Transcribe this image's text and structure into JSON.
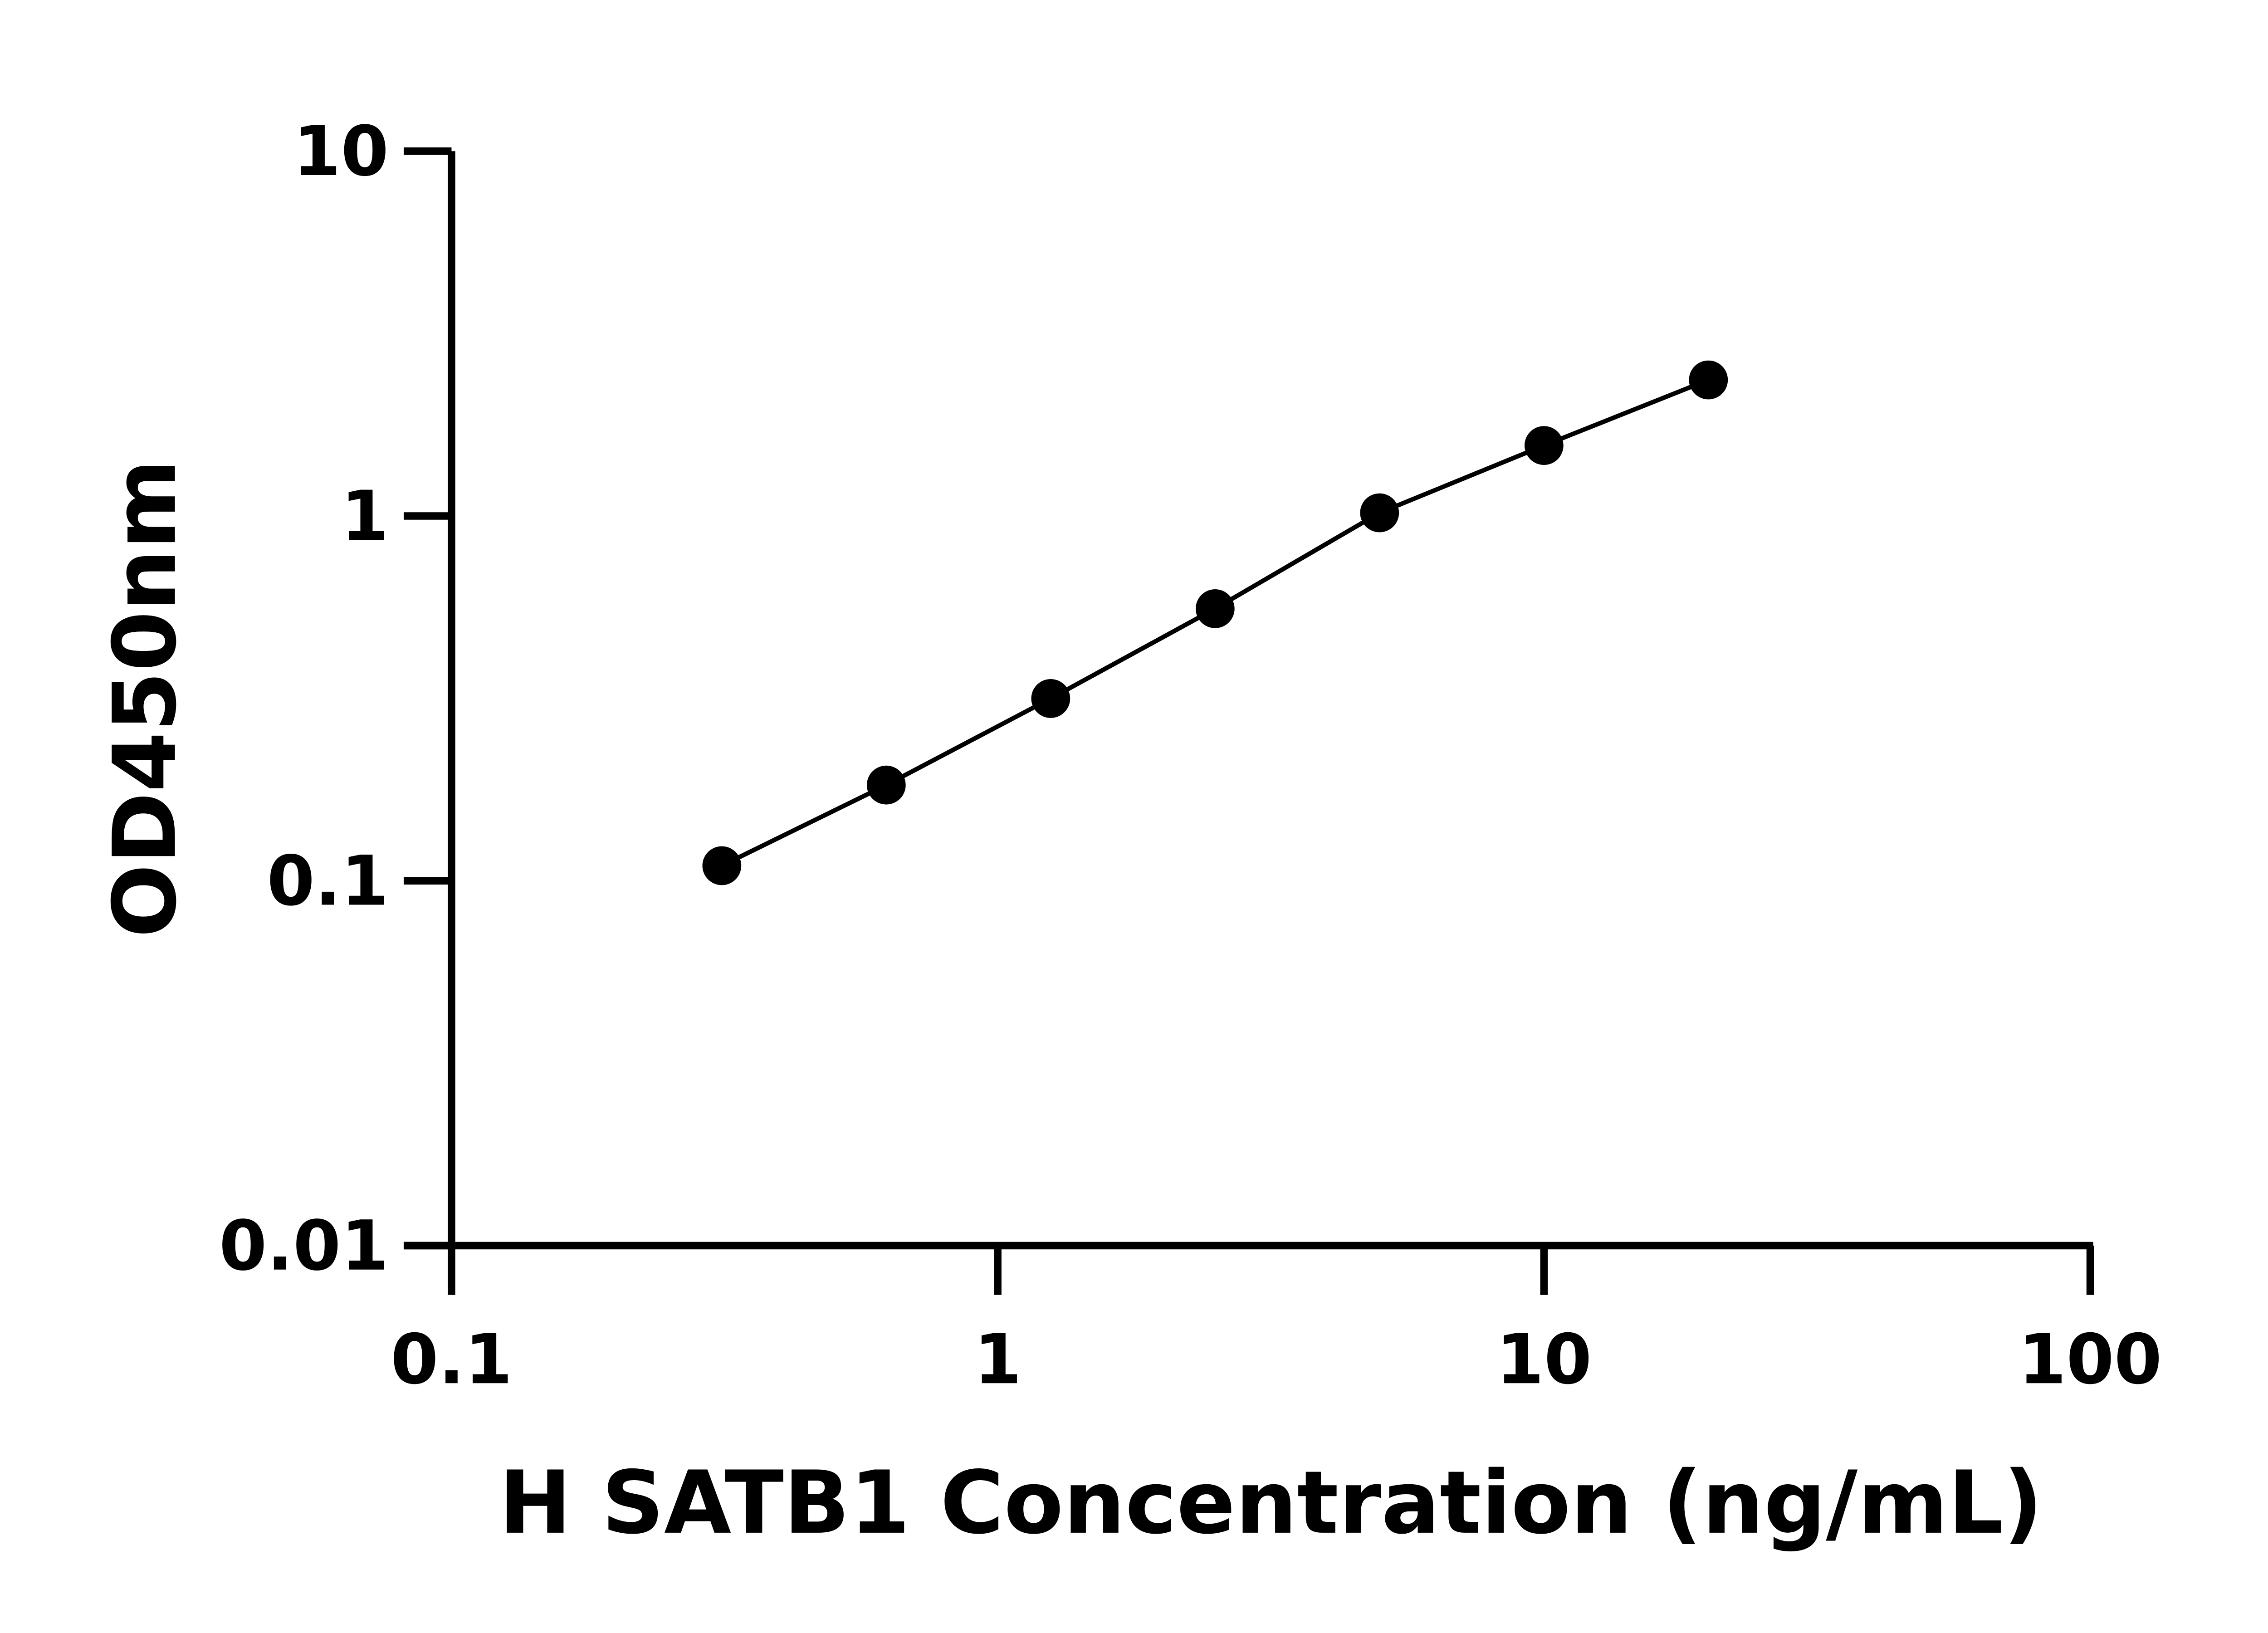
{
  "chart_data": {
    "type": "line",
    "title": "",
    "xlabel": "H SATB1 Concentration (ng/mL)",
    "ylabel": "OD450nm",
    "x_scale": "log",
    "y_scale": "log",
    "xlim": [
      0.1,
      100
    ],
    "ylim": [
      0.01,
      10
    ],
    "x_ticks": [
      "0.1",
      "1",
      "10",
      "100"
    ],
    "y_ticks": [
      "0.01",
      "0.1",
      "1",
      "10"
    ],
    "grid": false,
    "marker": "filled-circle",
    "color": "#000000",
    "series": [
      {
        "x": [
          0.3125,
          0.625,
          1.25,
          2.5,
          5,
          10,
          20
        ],
        "y": [
          0.11,
          0.183,
          0.316,
          0.557,
          1.02,
          1.56,
          2.36
        ]
      }
    ]
  }
}
